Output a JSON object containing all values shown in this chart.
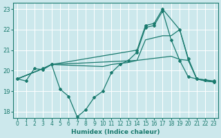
{
  "xlabel": "Humidex (Indice chaleur)",
  "ylabel": "",
  "bg_color": "#cce8ec",
  "grid_color": "#ffffff",
  "line_color": "#1a7a6e",
  "xlim": [
    -0.5,
    23.5
  ],
  "ylim": [
    17.7,
    23.3
  ],
  "xticks": [
    0,
    1,
    2,
    3,
    4,
    5,
    6,
    7,
    8,
    9,
    10,
    11,
    12,
    13,
    14,
    15,
    16,
    17,
    18,
    19,
    20,
    21,
    22,
    23
  ],
  "yticks": [
    18,
    19,
    20,
    21,
    22,
    23
  ],
  "lines": [
    {
      "x": [
        0,
        1,
        2,
        3,
        4,
        5,
        6,
        7,
        8,
        9,
        10,
        11,
        12,
        13,
        14,
        15,
        16,
        17,
        18,
        19,
        20,
        21,
        22,
        23
      ],
      "y": [
        19.6,
        19.5,
        20.1,
        20.05,
        20.3,
        19.1,
        18.75,
        17.75,
        18.1,
        18.7,
        19.0,
        19.9,
        20.3,
        20.5,
        20.9,
        22.1,
        22.2,
        22.9,
        21.5,
        20.5,
        19.7,
        19.6,
        19.55,
        19.5
      ],
      "marker": true,
      "lw": 0.9
    },
    {
      "x": [
        0,
        3,
        4,
        14,
        15,
        16,
        17,
        19,
        20,
        21,
        22,
        23
      ],
      "y": [
        19.6,
        20.1,
        20.3,
        21.0,
        22.2,
        22.3,
        23.0,
        22.0,
        20.6,
        19.6,
        19.55,
        19.45
      ],
      "marker": true,
      "lw": 0.9
    },
    {
      "x": [
        0,
        3,
        4,
        14,
        15,
        16,
        17,
        18,
        19,
        20,
        21,
        22,
        23
      ],
      "y": [
        19.6,
        20.1,
        20.3,
        20.5,
        21.5,
        21.6,
        21.7,
        21.7,
        22.0,
        20.55,
        19.6,
        19.5,
        19.45
      ],
      "marker": false,
      "lw": 0.9
    },
    {
      "x": [
        0,
        3,
        4,
        10,
        11,
        12,
        13,
        14,
        15,
        16,
        17,
        18,
        19,
        20,
        21,
        22,
        23
      ],
      "y": [
        19.6,
        20.1,
        20.3,
        20.2,
        20.3,
        20.35,
        20.4,
        20.5,
        20.55,
        20.6,
        20.65,
        20.7,
        20.55,
        20.5,
        19.6,
        19.5,
        19.45
      ],
      "marker": false,
      "lw": 0.9
    }
  ]
}
